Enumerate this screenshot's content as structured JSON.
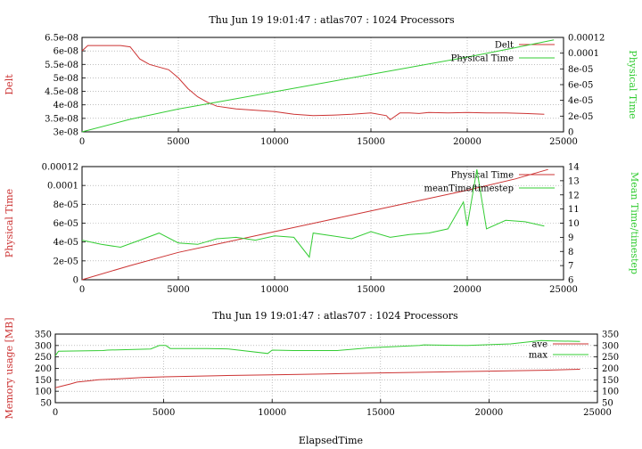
{
  "chart_data": [
    {
      "type": "line",
      "title": "Thu Jun 19 19:01:47 : atlas707 : 1024 Processors",
      "xlabel": "",
      "ylabel": "Delt",
      "y2label": "Physical Time",
      "xlim": [
        0,
        25000
      ],
      "ylim": [
        3e-08,
        6.5e-08
      ],
      "y2lim": [
        0,
        0.00012
      ],
      "xticks": [
        "0",
        "5000",
        "10000",
        "15000",
        "20000",
        "25000"
      ],
      "yticks": [
        "3e-08",
        "3.5e-08",
        "4e-08",
        "4.5e-08",
        "5e-08",
        "5.5e-08",
        "6e-08",
        "6.5e-08"
      ],
      "y2ticks": [
        "0",
        "2e-05",
        "4e-05",
        "6e-05",
        "8e-05",
        "0.0001",
        "0.00012"
      ],
      "grid": true,
      "legend": "top-right",
      "series": [
        {
          "name": "Delt",
          "axis": "y",
          "color": "#cc3333",
          "x": [
            0,
            300,
            1000,
            2000,
            2500,
            3000,
            3500,
            4000,
            4500,
            5000,
            5500,
            6000,
            6500,
            7000,
            8000,
            9000,
            10000,
            11000,
            12000,
            13000,
            14000,
            15000,
            15800,
            16000,
            16500,
            17000,
            17500,
            18000,
            19000,
            20000,
            21000,
            22000,
            23000,
            24000
          ],
          "y": [
            6e-08,
            6.2e-08,
            6.2e-08,
            6.2e-08,
            6.15e-08,
            5.7e-08,
            5.5e-08,
            5.4e-08,
            5.3e-08,
            5e-08,
            4.6e-08,
            4.3e-08,
            4.1e-08,
            3.95e-08,
            3.85e-08,
            3.8e-08,
            3.75e-08,
            3.65e-08,
            3.6e-08,
            3.62e-08,
            3.65e-08,
            3.7e-08,
            3.6e-08,
            3.45e-08,
            3.7e-08,
            3.7e-08,
            3.68e-08,
            3.72e-08,
            3.7e-08,
            3.72e-08,
            3.7e-08,
            3.7e-08,
            3.68e-08,
            3.65e-08
          ]
        },
        {
          "name": "Physical Time",
          "axis": "y2",
          "color": "#33cc33",
          "x": [
            0,
            2500,
            5000,
            7500,
            10000,
            12500,
            15000,
            17500,
            20000,
            22500,
            24500
          ],
          "y": [
            0,
            1.6e-05,
            2.9e-05,
            4e-05,
            5.1e-05,
            6.2e-05,
            7.3e-05,
            8.4e-05,
            9.5e-05,
            0.000107,
            0.000117
          ]
        }
      ]
    },
    {
      "type": "line",
      "title": "",
      "xlabel": "",
      "ylabel": "Physical Time",
      "y2label": "Mean Time/timestep",
      "xlim": [
        0,
        25000
      ],
      "ylim": [
        0,
        0.00012
      ],
      "y2lim": [
        6,
        14
      ],
      "xticks": [
        "0",
        "5000",
        "10000",
        "15000",
        "20000",
        "25000"
      ],
      "yticks": [
        "0",
        "2e-05",
        "4e-05",
        "6e-05",
        "8e-05",
        "0.0001",
        "0.00012"
      ],
      "y2ticks": [
        "6",
        "7",
        "8",
        "9",
        "10",
        "11",
        "12",
        "13",
        "14"
      ],
      "grid": true,
      "legend": "top-right",
      "series": [
        {
          "name": "Physical Time",
          "axis": "y",
          "color": "#cc3333",
          "x": [
            0,
            2500,
            5000,
            7500,
            10000,
            12500,
            15000,
            17500,
            20000,
            22500,
            24200
          ],
          "y": [
            0,
            1.5e-05,
            2.9e-05,
            4e-05,
            5.1e-05,
            6.2e-05,
            7.3e-05,
            8.4e-05,
            9.5e-05,
            0.000107,
            0.000117
          ]
        },
        {
          "name": "meanTime/timestep",
          "axis": "y2",
          "color": "#33cc33",
          "x": [
            0,
            1000,
            2000,
            3000,
            4000,
            5000,
            6000,
            7000,
            8000,
            9000,
            10000,
            11000,
            11800,
            12000,
            13000,
            14000,
            15000,
            16000,
            17000,
            18000,
            19000,
            19800,
            20000,
            20500,
            21000,
            22000,
            23000,
            24000
          ],
          "y": [
            8.8,
            8.5,
            8.3,
            8.8,
            9.3,
            8.6,
            8.5,
            8.9,
            9.0,
            8.8,
            9.1,
            9.0,
            7.6,
            9.3,
            9.1,
            8.9,
            9.4,
            9.0,
            9.2,
            9.3,
            9.6,
            11.5,
            9.8,
            13.8,
            9.6,
            10.2,
            10.1,
            9.8
          ]
        }
      ]
    },
    {
      "type": "line",
      "title": "Thu Jun 19 19:01:47 : atlas707 : 1024 Processors",
      "xlabel": "ElapsedTime",
      "ylabel": "Memory usage [MB]",
      "xlim": [
        0,
        25000
      ],
      "ylim": [
        50,
        350
      ],
      "y2lim": [
        50,
        350
      ],
      "xticks": [
        "0",
        "5000",
        "10000",
        "15000",
        "20000",
        "25000"
      ],
      "yticks": [
        "50",
        "100",
        "150",
        "200",
        "250",
        "300",
        "350"
      ],
      "y2ticks": [
        "50",
        "100",
        "150",
        "200",
        "250",
        "300",
        "350"
      ],
      "grid": true,
      "legend": "top-right",
      "series": [
        {
          "name": "ave",
          "axis": "y",
          "color": "#cc3333",
          "x": [
            0,
            200,
            700,
            1000,
            1500,
            2000,
            3000,
            4000,
            5000,
            7500,
            10000,
            12500,
            15000,
            17500,
            20000,
            22500,
            24200
          ],
          "y": [
            115,
            120,
            132,
            140,
            145,
            150,
            155,
            160,
            163,
            168,
            172,
            176,
            180,
            184,
            188,
            192,
            196
          ]
        },
        {
          "name": "max",
          "axis": "y",
          "color": "#33cc33",
          "x": [
            0,
            150,
            2200,
            2400,
            4400,
            4800,
            5100,
            5300,
            7000,
            8000,
            9800,
            10000,
            11000,
            13000,
            14500,
            16800,
            17000,
            19000,
            21000,
            22400,
            23000,
            24200
          ],
          "y": [
            255,
            275,
            278,
            280,
            285,
            300,
            300,
            287,
            287,
            285,
            265,
            280,
            278,
            278,
            290,
            300,
            303,
            300,
            307,
            322,
            320,
            318
          ]
        }
      ]
    }
  ]
}
